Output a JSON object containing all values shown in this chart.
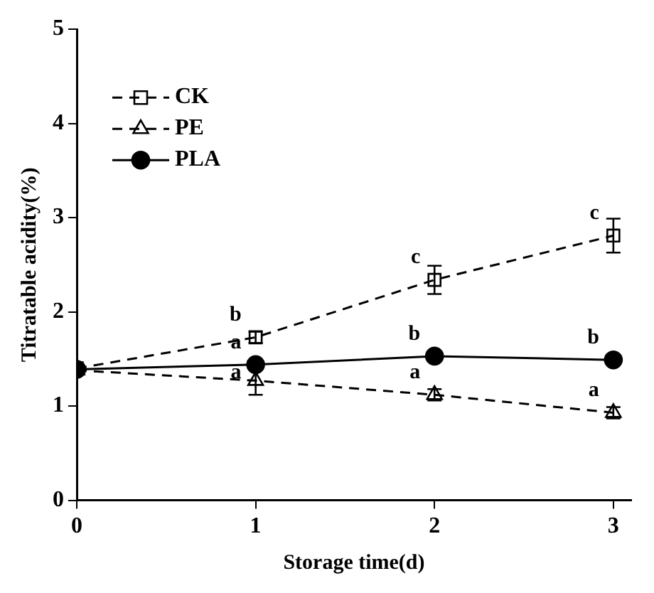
{
  "chart_data": {
    "type": "line",
    "xlabel": "Storage time(d)",
    "ylabel": "Titratable acidity(%)",
    "x": [
      0,
      1,
      2,
      3
    ],
    "xlim": [
      0,
      3.1
    ],
    "xticks": [
      0,
      1,
      2,
      3
    ],
    "ylim": [
      0,
      5
    ],
    "yticks": [
      0,
      1,
      2,
      3,
      4,
      5
    ],
    "grid": false,
    "legend": "top left",
    "series": [
      {
        "name": "CK",
        "color": "#000000",
        "marker": "square",
        "line_style": "dashed",
        "values": [
          1.4,
          1.73,
          2.34,
          2.81
        ],
        "errors": [
          null,
          0.06,
          0.15,
          0.18
        ]
      },
      {
        "name": "PE",
        "color": "#000000",
        "marker": "triangle",
        "line_style": "dashed",
        "values": [
          1.38,
          1.27,
          1.12,
          0.93
        ],
        "errors": [
          null,
          0.15,
          0.06,
          0.06
        ]
      },
      {
        "name": "PLA",
        "color": "#000000",
        "marker": "circle",
        "line_style": "solid",
        "values": [
          1.39,
          1.44,
          1.53,
          1.49
        ],
        "errors": [
          null,
          0.04,
          0.04,
          0.03
        ]
      }
    ],
    "annotations": [
      {
        "text": "b",
        "x": 1,
        "y": 1.73
      },
      {
        "text": "a",
        "x": 1,
        "y": 1.44
      },
      {
        "text": "a",
        "x": 1,
        "y": 1.12
      },
      {
        "text": "c",
        "x": 2,
        "y": 2.34
      },
      {
        "text": "b",
        "x": 2,
        "y": 1.53
      },
      {
        "text": "a",
        "x": 2,
        "y": 1.12
      },
      {
        "text": "c",
        "x": 3,
        "y": 2.81
      },
      {
        "text": "b",
        "x": 3,
        "y": 1.49
      },
      {
        "text": "a",
        "x": 3,
        "y": 0.93
      }
    ]
  }
}
